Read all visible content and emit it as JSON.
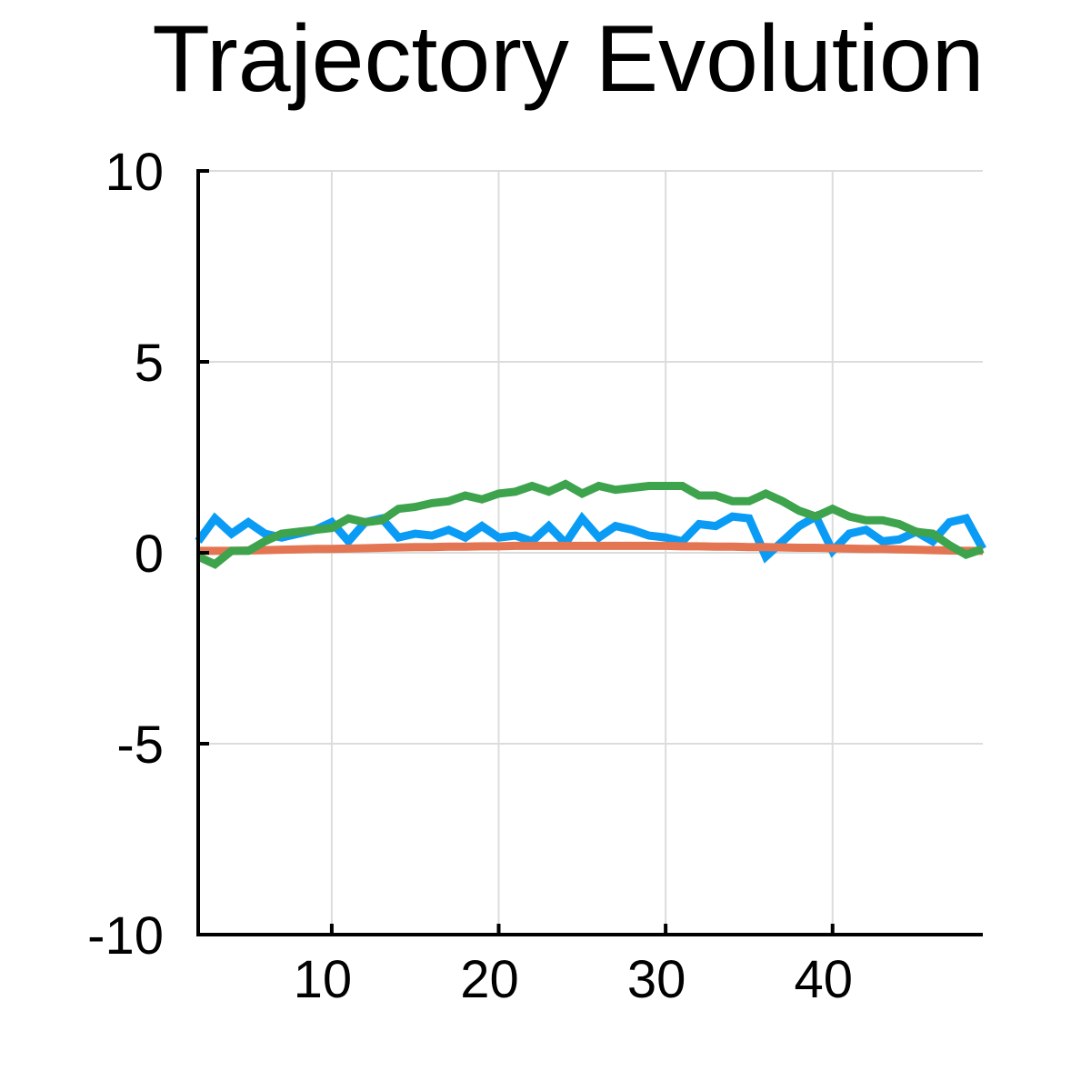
{
  "chart_data": {
    "type": "line",
    "title": "Trajectory Evolution",
    "xlabel": "",
    "ylabel": "",
    "xlim": [
      2,
      49
    ],
    "ylim": [
      -10,
      10
    ],
    "xticks": [
      10,
      20,
      30,
      40
    ],
    "yticks": [
      10,
      5,
      0,
      -5,
      -10
    ],
    "grid": true,
    "x": [
      2,
      3,
      4,
      5,
      6,
      7,
      8,
      9,
      10,
      11,
      12,
      13,
      14,
      15,
      16,
      17,
      18,
      19,
      20,
      21,
      22,
      23,
      24,
      25,
      26,
      27,
      28,
      29,
      30,
      31,
      32,
      33,
      34,
      35,
      36,
      37,
      38,
      39,
      40,
      41,
      42,
      43,
      44,
      45,
      46,
      47,
      48,
      49
    ],
    "series": [
      {
        "color": "#0a9bf5",
        "values": [
          0.3,
          0.9,
          0.5,
          0.8,
          0.5,
          0.4,
          0.5,
          0.6,
          0.8,
          0.3,
          0.8,
          0.9,
          0.4,
          0.5,
          0.45,
          0.6,
          0.4,
          0.7,
          0.4,
          0.45,
          0.3,
          0.7,
          0.25,
          0.9,
          0.4,
          0.7,
          0.6,
          0.45,
          0.4,
          0.3,
          0.75,
          0.7,
          0.95,
          0.9,
          -0.1,
          0.3,
          0.7,
          0.95,
          0.05,
          0.5,
          0.6,
          0.3,
          0.35,
          0.55,
          0.3,
          0.8,
          0.9,
          0.1
        ]
      },
      {
        "color": "#e37552",
        "values": [
          0.05,
          0.05,
          0.05,
          0.06,
          0.07,
          0.08,
          0.09,
          0.1,
          0.1,
          0.11,
          0.12,
          0.13,
          0.14,
          0.15,
          0.15,
          0.16,
          0.16,
          0.17,
          0.17,
          0.18,
          0.18,
          0.18,
          0.18,
          0.18,
          0.18,
          0.18,
          0.18,
          0.18,
          0.18,
          0.17,
          0.17,
          0.16,
          0.16,
          0.15,
          0.15,
          0.14,
          0.13,
          0.13,
          0.12,
          0.11,
          0.1,
          0.1,
          0.09,
          0.08,
          0.07,
          0.06,
          0.05,
          0.05
        ]
      },
      {
        "color": "#3da34d",
        "values": [
          -0.1,
          -0.3,
          0.05,
          0.05,
          0.3,
          0.5,
          0.55,
          0.6,
          0.65,
          0.9,
          0.8,
          0.85,
          1.15,
          1.2,
          1.3,
          1.35,
          1.5,
          1.4,
          1.55,
          1.6,
          1.75,
          1.6,
          1.8,
          1.55,
          1.75,
          1.65,
          1.7,
          1.75,
          1.75,
          1.75,
          1.5,
          1.5,
          1.35,
          1.35,
          1.55,
          1.35,
          1.1,
          0.95,
          1.15,
          0.95,
          0.85,
          0.85,
          0.75,
          0.55,
          0.5,
          0.2,
          -0.05,
          0.1
        ]
      }
    ]
  }
}
